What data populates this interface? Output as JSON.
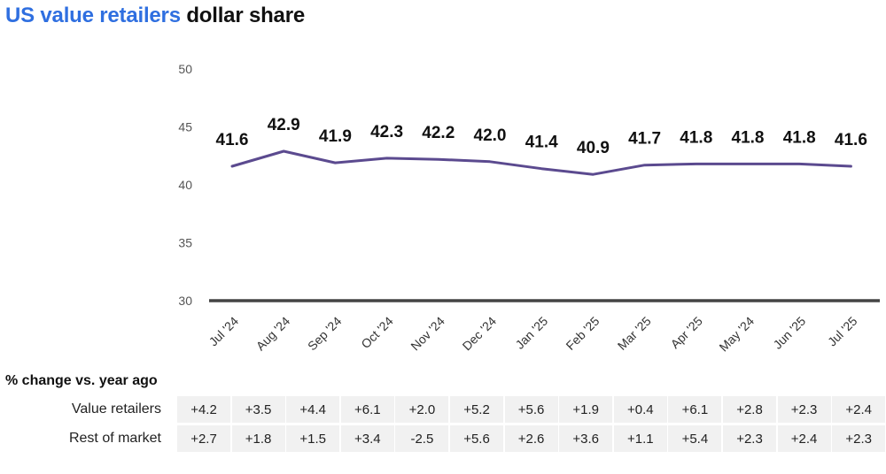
{
  "title": {
    "accent": "US value retailers",
    "rest": " dollar share"
  },
  "colors": {
    "accent": "#2f6fe0",
    "line": "#5b4a8f",
    "baseline": "#444444",
    "cell_bg": "#f1f1f1"
  },
  "chart_data": {
    "type": "line",
    "title": "US value retailers dollar share",
    "categories": [
      "Jul '24",
      "Aug '24",
      "Sep '24",
      "Oct '24",
      "Nov '24",
      "Dec '24",
      "Jan '25",
      "Feb '25",
      "Mar '25",
      "Apr '25",
      "May '24",
      "Jun '25",
      "Jul '25"
    ],
    "values": [
      41.6,
      42.9,
      41.9,
      42.3,
      42.2,
      42.0,
      41.4,
      40.9,
      41.7,
      41.8,
      41.8,
      41.8,
      41.6
    ],
    "data_labels": [
      "41.6",
      "42.9",
      "41.9",
      "42.3",
      "42.2",
      "42.0",
      "41.4",
      "40.9",
      "41.7",
      "41.8",
      "41.8",
      "41.8",
      "41.6"
    ],
    "yticks": [
      "50",
      "45",
      "40",
      "35",
      "30"
    ],
    "ytick_values": [
      50,
      45,
      40,
      35,
      30
    ],
    "ylim": [
      30,
      50
    ],
    "grid": false,
    "xlabel": "",
    "ylabel": ""
  },
  "table": {
    "heading": "% change vs. year ago",
    "rows": [
      {
        "label": "Value retailers",
        "values": [
          "+4.2",
          "+3.5",
          "+4.4",
          "+6.1",
          "+2.0",
          "+5.2",
          "+5.6",
          "+1.9",
          "+0.4",
          "+6.1",
          "+2.8",
          "+2.3",
          "+2.4"
        ]
      },
      {
        "label": "Rest of market",
        "values": [
          "+2.7",
          "+1.8",
          "+1.5",
          "+3.4",
          "-2.5",
          "+5.6",
          "+2.6",
          "+3.6",
          "+1.1",
          "+5.4",
          "+2.3",
          "+2.4",
          "+2.3"
        ]
      }
    ]
  }
}
